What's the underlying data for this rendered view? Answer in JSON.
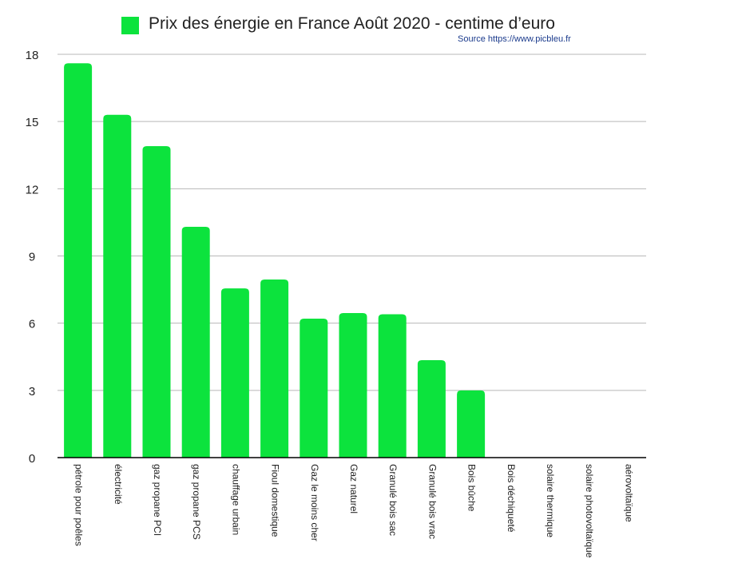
{
  "chart_data": {
    "type": "bar",
    "title": "",
    "xlabel": "",
    "ylabel": "",
    "ylim": [
      0,
      18
    ],
    "yticks": [
      0,
      3,
      6,
      9,
      12,
      15,
      18
    ],
    "grid": true,
    "legend_position": "top",
    "categories": [
      "pétrole pour poêles",
      "électricité",
      "gaz propane PCI",
      "gaz propane PCS",
      "chauffage urbain",
      "Fioul domestique",
      "Gaz le moins cher",
      "Gaz naturel",
      "Granulé bois sac",
      "Granulé bois vrac",
      "Bois bûche",
      "Bois déchiqueté",
      "solaire thermique",
      "solaire photovoltaïque",
      "aérovoltaïque"
    ],
    "series": [
      {
        "name": "Prix des énergie en France Août 2020 - centime d’euro",
        "values": [
          17.6,
          15.3,
          13.9,
          10.3,
          7.55,
          7.95,
          6.2,
          6.45,
          6.4,
          4.35,
          3.0,
          0,
          0,
          0,
          0
        ]
      }
    ]
  },
  "legend": {
    "label": "Prix des énergie en France Août 2020 - centime d’euro",
    "color": "#0ce33d"
  },
  "source_note": "Source https://www.picbleu.fr",
  "colors": {
    "bar": "#0ce33d",
    "grid": "#b8b8b8",
    "axis": "#000000",
    "source": "#1a3a8c",
    "text": "#222222"
  }
}
